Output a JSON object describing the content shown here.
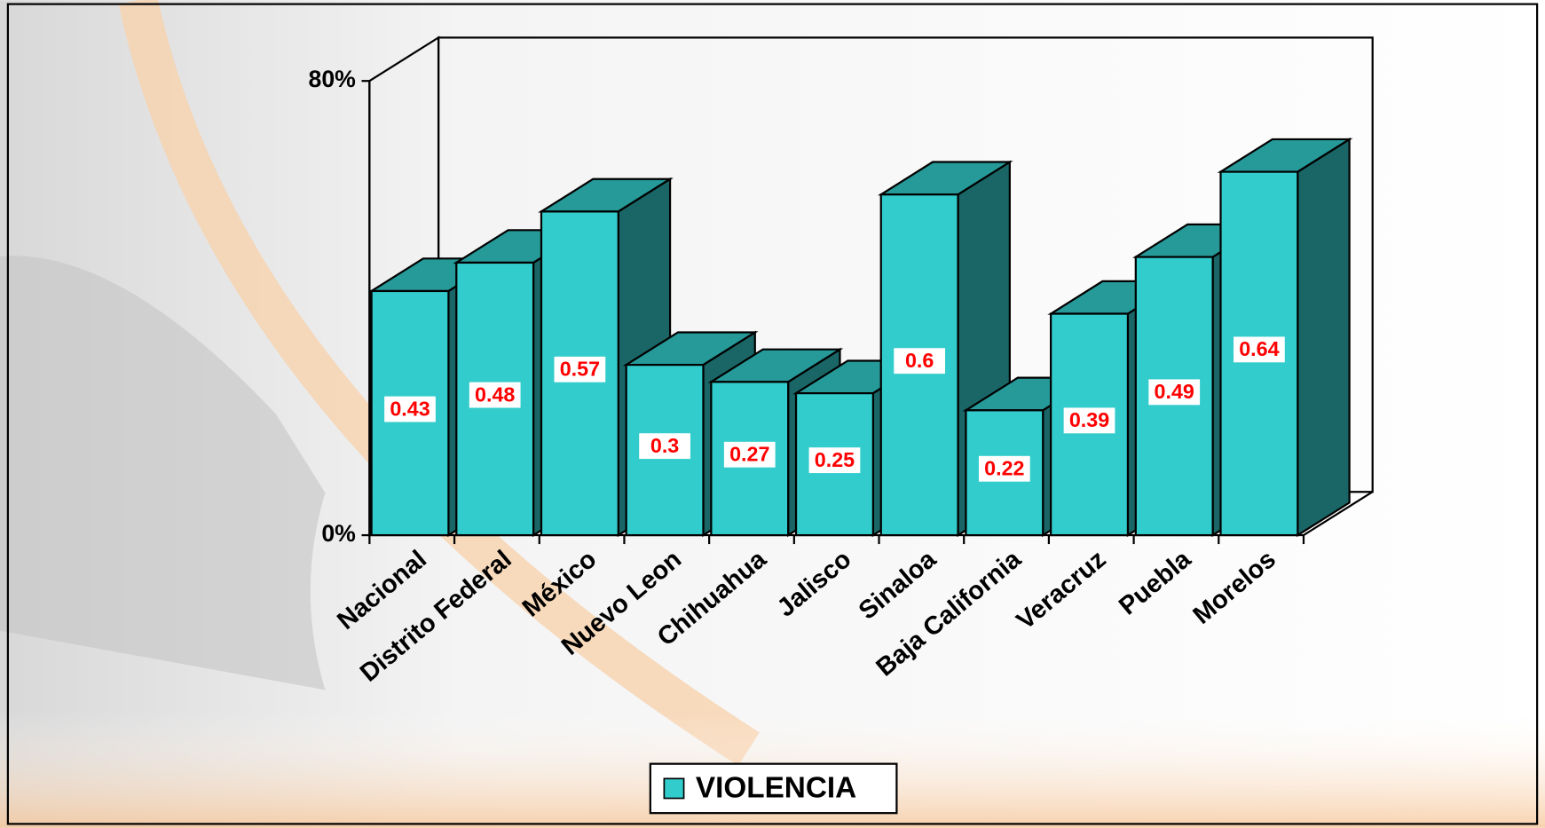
{
  "chart_data": {
    "type": "bar3d",
    "categories": [
      "Nacional",
      "Distrito Federal",
      "México",
      "Nuevo Leon",
      "Chihuahua",
      "Jalisco",
      "Sinaloa",
      "Baja California",
      "Veracruz",
      "Puebla",
      "Morelos"
    ],
    "series": [
      {
        "name": "VIOLENCIA",
        "color": "#33cccc",
        "values": [
          0.43,
          0.48,
          0.57,
          0.3,
          0.27,
          0.25,
          0.6,
          0.22,
          0.39,
          0.49,
          0.64
        ]
      }
    ],
    "ylim": [
      0,
      0.8
    ],
    "yticks": [
      {
        "value": 0,
        "label": "0%"
      },
      {
        "value": 0.8,
        "label": "80%"
      }
    ],
    "legend": "bottom"
  }
}
